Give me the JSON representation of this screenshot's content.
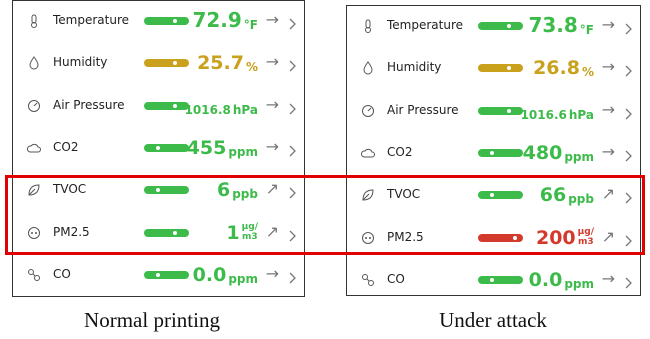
{
  "panels": [
    {
      "caption": "Normal printing",
      "rows": [
        {
          "label": "Temperature",
          "value": "72.9",
          "unit": [
            "°F"
          ],
          "trend": "→",
          "color": "#3dbb4a"
        },
        {
          "label": "Humidity",
          "value": "25.7",
          "unit": [
            "%"
          ],
          "trend": "→",
          "color": "#c9a11c"
        },
        {
          "label": "Air Pressure",
          "value": "1016.8",
          "unit": [
            "hPa"
          ],
          "trend": "→",
          "color": "#3dbb4a"
        },
        {
          "label": "CO2",
          "value": "455",
          "unit": [
            "ppm"
          ],
          "trend": "→",
          "color": "#3dbb4a"
        },
        {
          "label": "TVOC",
          "value": "6",
          "unit": [
            "ppb"
          ],
          "trend": "↗",
          "color": "#3dbb4a"
        },
        {
          "label": "PM2.5",
          "value": "1",
          "unit": [
            "μg/",
            "m3"
          ],
          "trend": "↗",
          "color": "#3dbb4a"
        },
        {
          "label": "CO",
          "value": "0.0",
          "unit": [
            "ppm"
          ],
          "trend": "→",
          "color": "#3dbb4a"
        }
      ]
    },
    {
      "caption": "Under attack",
      "rows": [
        {
          "label": "Temperature",
          "value": "73.8",
          "unit": [
            "°F"
          ],
          "trend": "→",
          "color": "#3dbb4a"
        },
        {
          "label": "Humidity",
          "value": "26.8",
          "unit": [
            "%"
          ],
          "trend": "→",
          "color": "#c9a11c"
        },
        {
          "label": "Air Pressure",
          "value": "1016.6",
          "unit": [
            "hPa"
          ],
          "trend": "→",
          "color": "#3dbb4a"
        },
        {
          "label": "CO2",
          "value": "480",
          "unit": [
            "ppm"
          ],
          "trend": "→",
          "color": "#3dbb4a"
        },
        {
          "label": "TVOC",
          "value": "66",
          "unit": [
            "ppb"
          ],
          "trend": "↗",
          "color": "#3dbb4a"
        },
        {
          "label": "PM2.5",
          "value": "200",
          "unit": [
            "μg/",
            "m3"
          ],
          "trend": "↗",
          "color": "#d33a2c"
        },
        {
          "label": "CO",
          "value": "0.0",
          "unit": [
            "ppm"
          ],
          "trend": "→",
          "color": "#3dbb4a"
        }
      ]
    }
  ]
}
